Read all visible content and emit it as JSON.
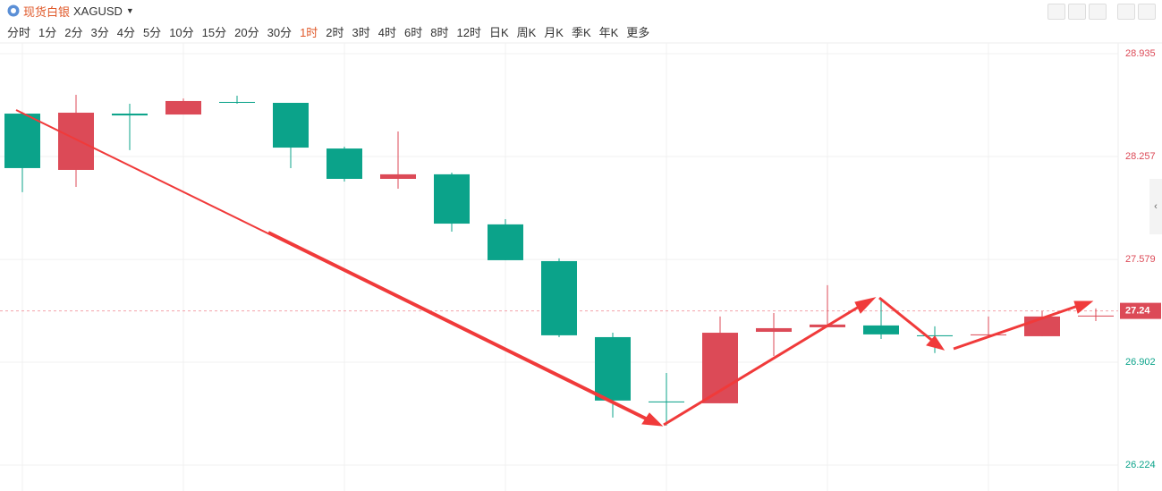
{
  "header": {
    "symbol_name": "现货白银",
    "symbol": "XAGUSD",
    "periods": [
      "分时",
      "1分",
      "2分",
      "3分",
      "4分",
      "5分",
      "10分",
      "15分",
      "20分",
      "30分",
      "1时",
      "2时",
      "3时",
      "4时",
      "6时",
      "8时",
      "12时",
      "日K",
      "周K",
      "月K",
      "季K",
      "年K",
      "更多"
    ],
    "active_period": "1时"
  },
  "chart_data": {
    "type": "candlestick",
    "categories": [
      null,
      null,
      null,
      null,
      null,
      null,
      null,
      null,
      null,
      null,
      null,
      null,
      null,
      null,
      null,
      null,
      null,
      null,
      null,
      null,
      null
    ],
    "open": [
      28.54,
      28.169,
      28.54,
      28.534,
      28.617,
      28.611,
      28.31,
      28.11,
      28.14,
      27.81,
      27.568,
      27.067,
      26.643,
      26.631,
      27.102,
      27.132,
      27.144,
      27.079,
      27.079,
      27.073,
      27.203
    ],
    "high": [
      28.55,
      28.664,
      28.605,
      28.64,
      28.658,
      28.611,
      28.322,
      28.422,
      28.151,
      27.845,
      27.586,
      27.096,
      26.831,
      27.203,
      27.226,
      27.409,
      27.32,
      27.138,
      27.203,
      27.238,
      27.256
    ],
    "low": [
      28.022,
      28.057,
      28.299,
      28.534,
      28.605,
      28.181,
      28.092,
      28.045,
      27.762,
      27.574,
      27.067,
      26.537,
      26.484,
      26.631,
      26.943,
      27.132,
      27.055,
      26.962,
      27.073,
      27.073,
      27.173
    ],
    "close": [
      28.181,
      28.546,
      28.528,
      28.623,
      28.611,
      28.316,
      28.11,
      28.14,
      27.815,
      27.574,
      27.079,
      26.649,
      26.637,
      27.096,
      27.126,
      27.15,
      27.085,
      27.073,
      27.085,
      27.203,
      27.209
    ],
    "up_color": "#dc4a57",
    "down_color": "#0ba38a",
    "last_price": 27.24,
    "ylim": [
      26.165,
      28.994
    ],
    "yticks": [
      26.224,
      26.902,
      27.579,
      28.257,
      28.935
    ],
    "grid": true
  }
}
